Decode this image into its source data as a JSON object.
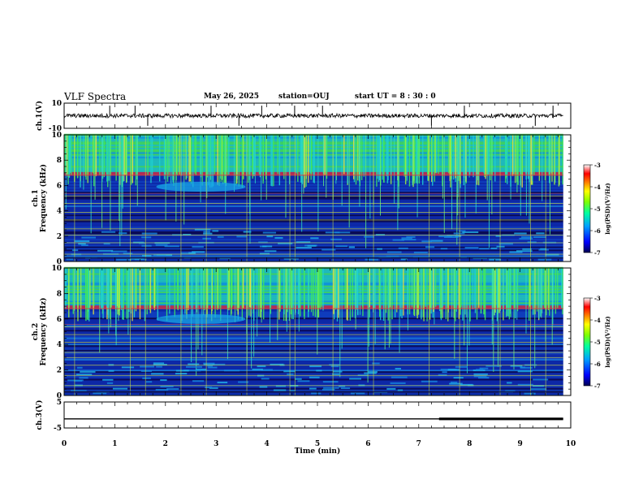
{
  "header": {
    "title": "VLF Spectra",
    "date": "May 26, 2025",
    "station": "station=OUJ",
    "start_ut": "start  UT =   8  : 30 : 0"
  },
  "chart_data": [
    {
      "type": "line",
      "name": "ch1-waveform",
      "ylabel": "ch.1(V)",
      "ylim": [
        -10,
        10
      ],
      "yticks": [
        10,
        -10
      ],
      "xlim": [
        0,
        10
      ],
      "baseline": 0,
      "spikes_min": [
        0.9,
        1.4,
        1.65,
        2.9,
        3.45,
        3.9,
        4.55,
        5.1,
        7.25,
        7.9,
        9.3,
        9.65
      ]
    },
    {
      "type": "heatmap",
      "name": "ch1-spectrogram",
      "ylabel": "ch.1\nFrequency (kHz)",
      "ylim": [
        0,
        10
      ],
      "yticks": [
        0,
        2,
        4,
        6,
        8,
        10
      ],
      "xlim": [
        0,
        10
      ],
      "colorbar": {
        "label": "log(PSD)(V²/Hz)",
        "range": [
          -7,
          -3
        ],
        "ticks": [
          -3,
          -4,
          -5,
          -6,
          -7
        ]
      }
    },
    {
      "type": "heatmap",
      "name": "ch2-spectrogram",
      "ylabel": "ch.2\nFrequency (kHz)",
      "ylim": [
        0,
        10
      ],
      "yticks": [
        0,
        2,
        4,
        6,
        8,
        10
      ],
      "xlim": [
        0,
        10
      ],
      "colorbar": {
        "label": "log(PSD)(V²/Hz)",
        "range": [
          -7,
          -3
        ],
        "ticks": [
          -3,
          -4,
          -5,
          -6,
          -7
        ]
      }
    },
    {
      "type": "line",
      "name": "ch3-waveform",
      "ylabel": "ch.3(V)",
      "ylim": [
        -5,
        5
      ],
      "yticks": [
        5,
        -5
      ],
      "xlim": [
        0,
        10
      ],
      "level": -1.5,
      "thick_from_min": 7.4
    }
  ],
  "xaxis": {
    "label": "Time  (min)",
    "ticks": [
      0,
      1,
      2,
      3,
      4,
      5,
      6,
      7,
      8,
      9,
      10
    ]
  },
  "colors": {
    "spectro_low": "#0a1a8c",
    "spectro_high": "#22e060",
    "colorbar": [
      "#000050",
      "#0000ff",
      "#00a0ff",
      "#00ffa0",
      "#80ff00",
      "#ffff00",
      "#ff8000",
      "#ff0000",
      "#ffffff"
    ]
  }
}
